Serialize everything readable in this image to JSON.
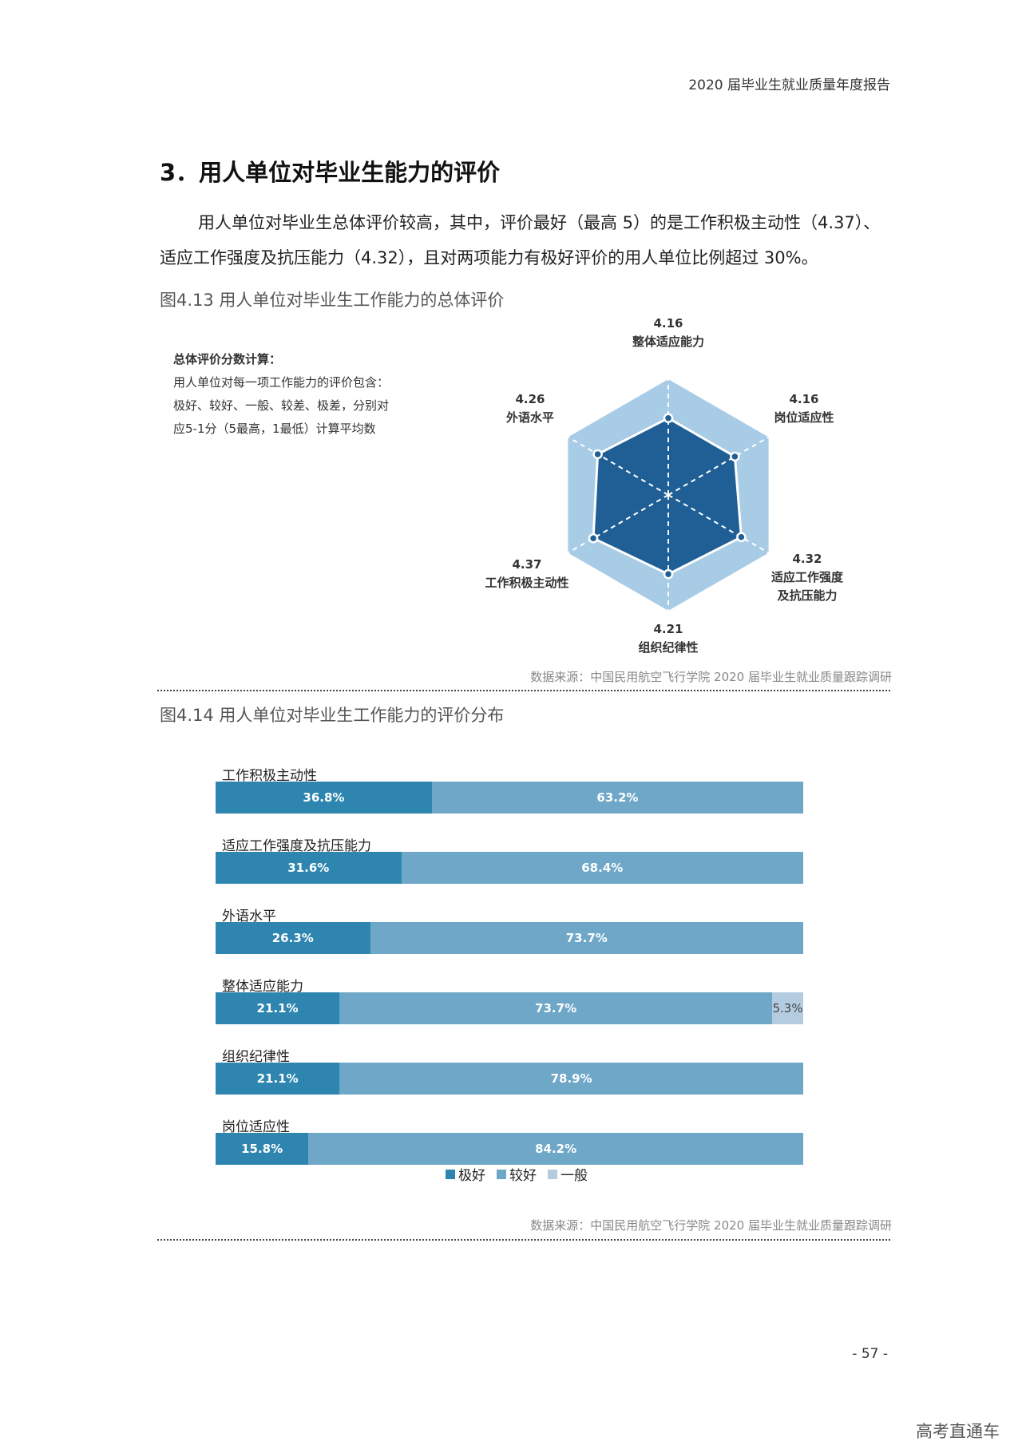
{
  "header": {
    "report_title": "2020 届毕业生就业质量年度报告"
  },
  "section": {
    "title": "3．用人单位对毕业生能力的评价",
    "para_line1": "用人单位对毕业生总体评价较高，其中，评价最好（最高 5）的是工作积极主动性（4.37）、",
    "para_line2": "适应工作强度及抗压能力（4.32），且对两项能力有极好评价的用人单位比例超过 30%。"
  },
  "figure1": {
    "title": "图4.13 用人单位对毕业生工作能力的总体评价",
    "note_title": "总体评价分数计算：",
    "note_lines": [
      "用人单位对每一项工作能力的评价包含：",
      "极好、较好、一般、较差、极差，分别对",
      "应5-1分（5最高，1最低）计算平均数"
    ],
    "source": "数据来源：中国民用航空飞行学院 2020 届毕业生就业质量跟踪调研"
  },
  "figure2": {
    "title": "图4.14 用人单位对毕业生工作能力的评价分布",
    "source": "数据来源：中国民用航空飞行学院 2020 届毕业生就业质量跟踪调研"
  },
  "page": {
    "number": "- 57 -"
  },
  "watermark": "高考直通车",
  "chart_data": [
    {
      "type": "radar",
      "title": "图4.13 用人单位对毕业生工作能力的总体评价",
      "axes": [
        {
          "name": "整体适应能力",
          "value": 4.16
        },
        {
          "name": "岗位适应性",
          "value": 4.16
        },
        {
          "name": "适应工作强度及抗压能力",
          "value": 4.32
        },
        {
          "name": "组织纪律性",
          "value": 4.21
        },
        {
          "name": "工作积极主动性",
          "value": 4.37
        },
        {
          "name": "外语水平",
          "value": 4.26
        }
      ],
      "value_labels": [
        "4.16",
        "4.16",
        "4.32",
        "4.21",
        "4.37",
        "4.26"
      ],
      "label_lines": [
        [
          "整体适应能力"
        ],
        [
          "岗位适应性"
        ],
        [
          "适应工作强度",
          "及抗压能力"
        ],
        [
          "组织纪律性"
        ],
        [
          "工作积极主动性"
        ],
        [
          "外语水平"
        ]
      ],
      "colors": {
        "outer": "#a8cbe6",
        "inner": "#1f5f95",
        "grid": "#ffffff"
      }
    },
    {
      "type": "bar",
      "orientation": "horizontal",
      "stacked": true,
      "title": "图4.14 用人单位对毕业生工作能力的评价分布",
      "categories": [
        "工作积极主动性",
        "适应工作强度及抗压能力",
        "外语水平",
        "整体适应能力",
        "组织纪律性",
        "岗位适应性"
      ],
      "series": [
        {
          "name": "极好",
          "color": "#2e86b0",
          "values": [
            36.8,
            31.6,
            26.3,
            21.1,
            21.1,
            15.8
          ],
          "labels": [
            "36.8%",
            "31.6%",
            "26.3%",
            "21.1%",
            "21.1%",
            "15.8%"
          ]
        },
        {
          "name": "较好",
          "color": "#6ea7c8",
          "values": [
            63.2,
            68.4,
            73.7,
            73.7,
            78.9,
            84.2
          ],
          "labels": [
            "63.2%",
            "68.4%",
            "73.7%",
            "73.7%",
            "78.9%",
            "84.2%"
          ]
        },
        {
          "name": "一般",
          "color": "#b4cce0",
          "values": [
            0,
            0,
            0,
            5.3,
            0,
            0
          ],
          "labels": [
            "",
            "",
            "",
            "5.3%",
            "",
            ""
          ]
        }
      ],
      "legend": [
        "极好",
        "较好",
        "一般"
      ],
      "legend_position": "bottom"
    }
  ]
}
